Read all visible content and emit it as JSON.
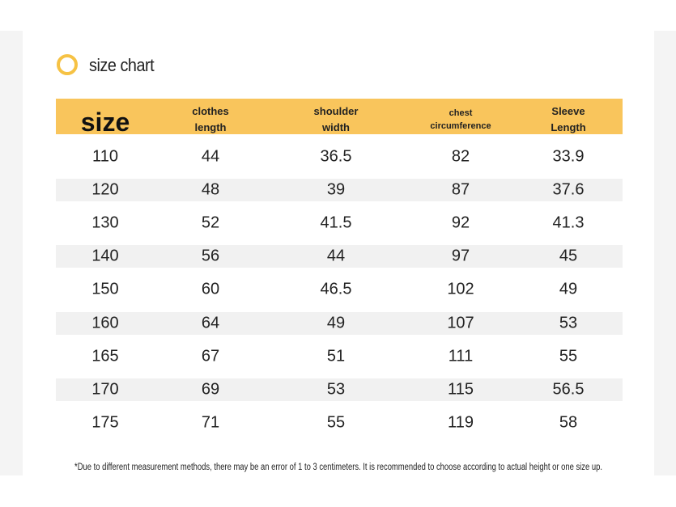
{
  "title": "size chart",
  "table": {
    "header": [
      [
        "size"
      ],
      [
        "clothes",
        "length"
      ],
      [
        "shoulder",
        "width"
      ],
      [
        "chest",
        "circumference"
      ],
      [
        "Sleeve",
        "Length"
      ]
    ],
    "rows": [
      [
        110,
        44,
        36.5,
        82,
        33.9
      ],
      [
        120,
        48,
        39,
        87,
        37.6
      ],
      [
        130,
        52,
        41.5,
        92,
        41.3
      ],
      [
        140,
        56,
        44,
        97,
        45
      ],
      [
        150,
        60,
        46.5,
        102,
        49
      ],
      [
        160,
        64,
        49,
        107,
        53
      ],
      [
        165,
        67,
        51,
        111,
        55
      ],
      [
        170,
        69,
        53,
        115,
        56.5
      ],
      [
        175,
        71,
        55,
        119,
        58
      ]
    ]
  },
  "footnote": "*Due to different measurement methods, there may be an error of 1 to 3 centimeters. It is recommended to choose according to actual height or one size up."
}
